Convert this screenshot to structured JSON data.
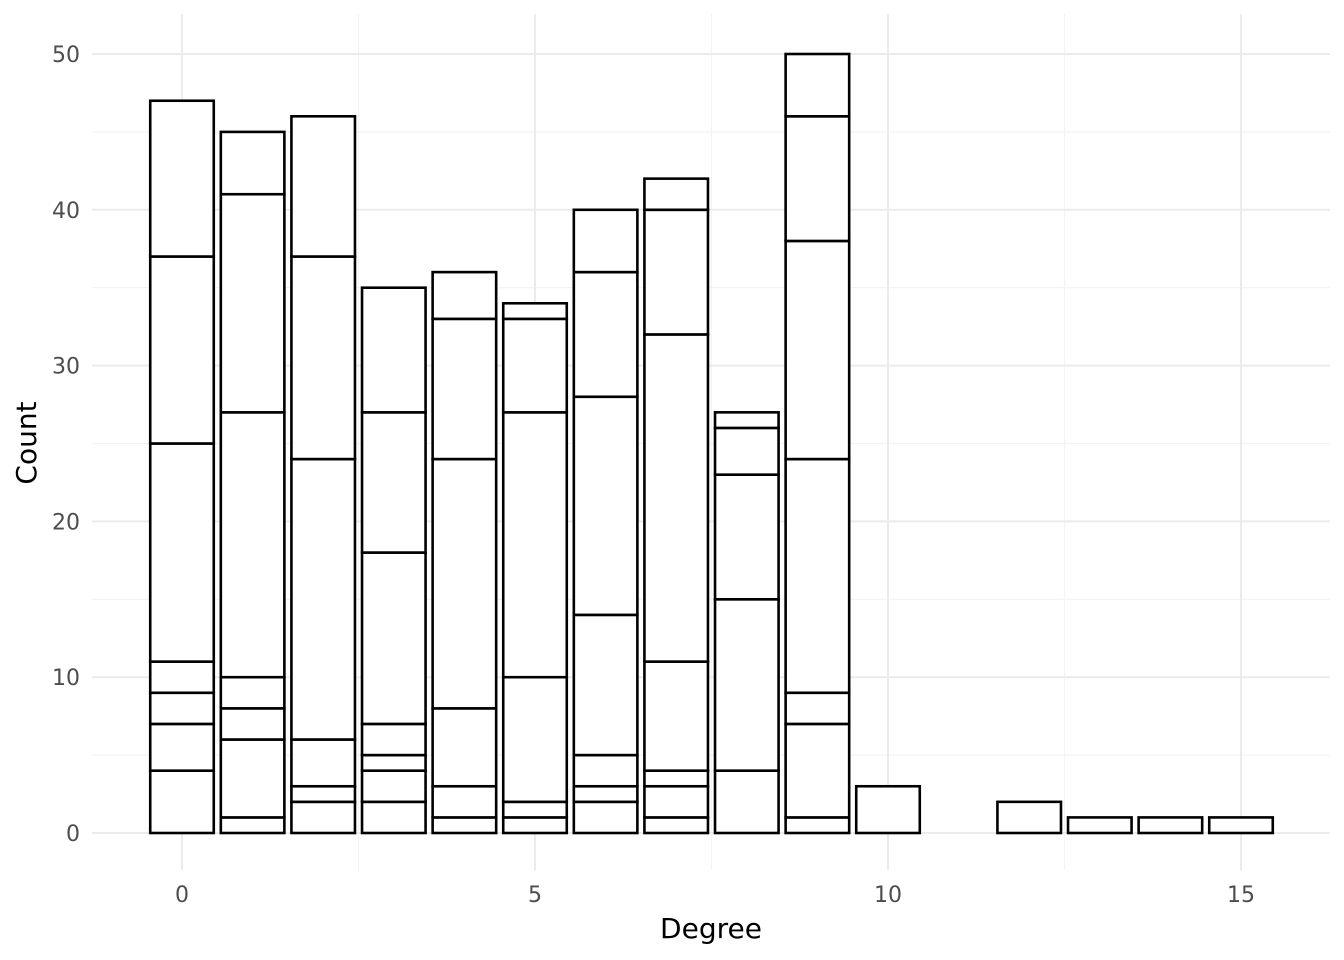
{
  "chart_data": {
    "type": "bar",
    "stacked": true,
    "xlabel": "Degree",
    "ylabel": "Count",
    "xlim": [
      -0.5,
      15.5
    ],
    "ylim": [
      0,
      50
    ],
    "x_ticks": [
      "0",
      "5",
      "10",
      "15"
    ],
    "y_ticks": [
      "0",
      "10",
      "20",
      "30",
      "40",
      "50"
    ],
    "grid": true,
    "fill_color": "#ffffff",
    "edge_color": "#000000",
    "bars": [
      {
        "x": 0,
        "cumulative": [
          4,
          7,
          9,
          11,
          25,
          37,
          47
        ]
      },
      {
        "x": 1,
        "cumulative": [
          1,
          6,
          8,
          10,
          27,
          41,
          45
        ]
      },
      {
        "x": 2,
        "cumulative": [
          2,
          3,
          6,
          24,
          37,
          46
        ]
      },
      {
        "x": 3,
        "cumulative": [
          2,
          4,
          5,
          7,
          18,
          27,
          35
        ]
      },
      {
        "x": 4,
        "cumulative": [
          1,
          3,
          8,
          24,
          33,
          36
        ]
      },
      {
        "x": 5,
        "cumulative": [
          1,
          2,
          10,
          27,
          33,
          34
        ]
      },
      {
        "x": 6,
        "cumulative": [
          2,
          3,
          5,
          14,
          28,
          36,
          40
        ]
      },
      {
        "x": 7,
        "cumulative": [
          1,
          3,
          4,
          11,
          32,
          40,
          42
        ]
      },
      {
        "x": 8,
        "cumulative": [
          4,
          15,
          23,
          26,
          27
        ]
      },
      {
        "x": 9,
        "cumulative": [
          1,
          7,
          9,
          24,
          38,
          46,
          50
        ]
      },
      {
        "x": 10,
        "cumulative": [
          3
        ]
      },
      {
        "x": 12,
        "cumulative": [
          2
        ]
      },
      {
        "x": 13,
        "cumulative": [
          1
        ]
      },
      {
        "x": 14,
        "cumulative": [
          1
        ]
      },
      {
        "x": 15,
        "cumulative": [
          1
        ]
      }
    ]
  }
}
